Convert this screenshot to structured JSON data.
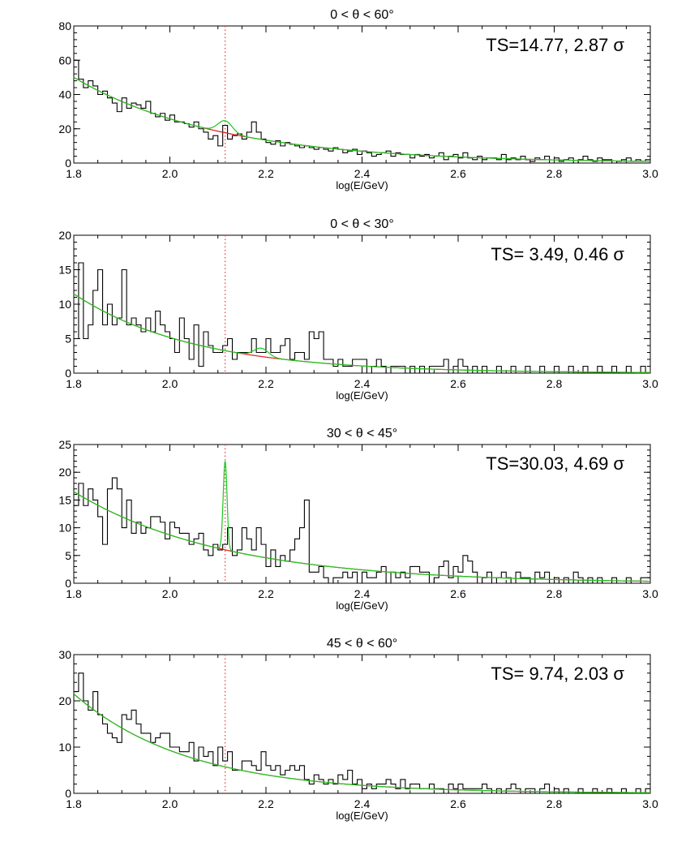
{
  "colors": {
    "histogram": "#000000",
    "background_fit": "#e8161b",
    "line_fit": "#18c81d",
    "line_position_marker": "#ee4444"
  },
  "chart_data": [
    {
      "type": "line",
      "title": "0 < θ < 60°",
      "xlabel": "log(E/GeV)",
      "ylabel": "",
      "xlim": [
        1.8,
        3.0
      ],
      "ylim": [
        0,
        80
      ],
      "xticks": [
        "1.8",
        "2.0",
        "2.2",
        "2.4",
        "2.6",
        "2.8",
        "3.0"
      ],
      "yticks": [
        "0",
        "20",
        "40",
        "60",
        "80"
      ],
      "annotation": "TS=14.77, 2.87 σ",
      "line_marker_x": 2.115,
      "background_fit": {
        "amplitude": 50,
        "slope": 3.3
      },
      "line_fit": {
        "center": 2.115,
        "width": 0.015,
        "height": 7
      },
      "histogram": {
        "x_start": 1.8,
        "bin_width": 0.01,
        "counts": [
          60,
          49,
          44,
          48,
          45,
          40,
          42,
          38,
          35,
          30,
          38,
          32,
          35,
          34,
          32,
          36,
          29,
          27,
          29,
          25,
          28,
          24,
          24,
          23,
          21,
          24,
          20,
          18,
          14,
          16,
          10,
          22,
          14,
          16,
          17,
          14,
          18,
          24,
          18,
          14,
          12,
          11,
          13,
          10,
          12,
          11,
          10,
          9,
          10,
          9,
          8,
          9,
          8,
          7,
          9,
          8,
          6,
          7,
          8,
          5,
          7,
          6,
          4,
          5,
          6,
          7,
          4,
          6,
          5,
          5,
          3,
          5,
          4,
          5,
          3,
          4,
          6,
          2,
          4,
          5,
          3,
          6,
          3,
          2,
          4,
          2,
          3,
          3,
          2,
          5,
          2,
          3,
          2,
          4,
          2,
          1,
          3,
          2,
          4,
          0,
          3,
          1,
          2,
          3,
          0,
          2,
          4,
          2,
          1,
          3,
          2,
          2,
          0,
          1,
          2,
          3,
          1,
          2,
          1,
          2
        ]
      }
    },
    {
      "type": "line",
      "title": "0 < θ < 30°",
      "xlabel": "log(E/GeV)",
      "ylabel": "",
      "xlim": [
        1.8,
        3.0
      ],
      "ylim": [
        0,
        20
      ],
      "xticks": [
        "1.8",
        "2.0",
        "2.2",
        "2.4",
        "2.6",
        "2.8",
        "3.0"
      ],
      "yticks": [
        "0",
        "5",
        "10",
        "15",
        "20"
      ],
      "annotation": "TS= 3.49, 0.46 σ",
      "line_marker_x": 2.115,
      "background_fit": {
        "amplitude": 11.5,
        "slope": 4.0
      },
      "line_fit": {
        "center": 2.19,
        "width": 0.015,
        "height": 1.2
      },
      "histogram": {
        "x_start": 1.8,
        "bin_width": 0.01,
        "counts": [
          5,
          16,
          5,
          7,
          12,
          15,
          7,
          10,
          7,
          8,
          15,
          7,
          8,
          7,
          6,
          8,
          6,
          9,
          7,
          6,
          5,
          3,
          8,
          5,
          2,
          7,
          1,
          6,
          4,
          3,
          3,
          4,
          5,
          2,
          3,
          3,
          3,
          5,
          3,
          3,
          5,
          3,
          3,
          4,
          5,
          2,
          3,
          3,
          2,
          6,
          5,
          6,
          2,
          2,
          1,
          2,
          1,
          1,
          2,
          2,
          2,
          0,
          1,
          2,
          1,
          0,
          1,
          1,
          1,
          0,
          1,
          0,
          1,
          0,
          1,
          1,
          1,
          2,
          0,
          1,
          2,
          1,
          0,
          1,
          0,
          1,
          0,
          0,
          1,
          0,
          0,
          1,
          0,
          0,
          1,
          0,
          0,
          1,
          0,
          0,
          1,
          0,
          0,
          1,
          0,
          0,
          1,
          0,
          0,
          1,
          0,
          0,
          1,
          0,
          0,
          1,
          0,
          0,
          1,
          0
        ]
      }
    },
    {
      "type": "line",
      "title": "30 < θ < 45°",
      "xlabel": "log(E/GeV)",
      "ylabel": "",
      "xlim": [
        1.8,
        3.0
      ],
      "ylim": [
        0,
        25
      ],
      "xticks": [
        "1.8",
        "2.0",
        "2.2",
        "2.4",
        "2.6",
        "2.8",
        "3.0"
      ],
      "yticks": [
        "0",
        "5",
        "10",
        "15",
        "20",
        "25"
      ],
      "annotation": "TS=30.03, 4.69 σ",
      "line_marker_x": 2.115,
      "background_fit": {
        "amplitude": 16.5,
        "slope": 3.2
      },
      "line_fit": {
        "center": 2.115,
        "width": 0.004,
        "height": 16
      },
      "histogram": {
        "x_start": 1.8,
        "bin_width": 0.01,
        "counts": [
          14,
          18,
          14,
          17,
          15,
          12,
          7,
          17,
          19,
          17,
          10,
          15,
          9,
          11,
          9,
          10,
          12,
          12,
          11,
          8,
          11,
          10,
          9,
          9,
          7,
          8,
          9,
          6,
          5,
          7,
          6,
          7,
          10,
          5,
          6,
          10,
          8,
          6,
          10,
          7,
          3,
          6,
          3,
          5,
          4,
          6,
          8,
          10,
          15,
          2,
          2,
          3,
          1,
          0,
          1,
          1,
          2,
          1,
          2,
          0,
          2,
          1,
          1,
          2,
          3,
          0,
          2,
          1,
          2,
          1,
          3,
          3,
          2,
          2,
          0,
          1,
          3,
          4,
          1,
          3,
          2,
          5,
          4,
          2,
          0,
          1,
          2,
          0,
          1,
          2,
          1,
          0,
          2,
          1,
          1,
          0,
          2,
          1,
          2,
          0,
          1,
          0,
          1,
          0,
          2,
          1,
          0,
          1,
          0,
          1,
          0,
          0,
          1,
          0,
          0,
          1,
          0,
          0,
          1,
          1
        ]
      }
    },
    {
      "type": "line",
      "title": "45 < θ < 60°",
      "xlabel": "log(E/GeV)",
      "ylabel": "",
      "xlim": [
        1.8,
        3.0
      ],
      "ylim": [
        0,
        30
      ],
      "xticks": [
        "1.8",
        "2.0",
        "2.2",
        "2.4",
        "2.6",
        "2.8",
        "3.0"
      ],
      "yticks": [
        "0",
        "10",
        "20",
        "30"
      ],
      "annotation": "TS= 9.74, 2.03 σ",
      "line_marker_x": 2.115,
      "background_fit": {
        "amplitude": 21.5,
        "slope": 4.2
      },
      "line_fit": {
        "center": 2.115,
        "width": 0.015,
        "height": 0
      },
      "histogram": {
        "x_start": 1.8,
        "bin_width": 0.01,
        "counts": [
          22,
          26,
          20,
          18,
          22,
          17,
          15,
          13,
          12,
          11,
          17,
          16,
          18,
          15,
          13,
          13,
          11,
          12,
          13,
          13,
          10,
          10,
          9,
          9,
          11,
          7,
          10,
          8,
          9,
          6,
          10,
          7,
          9,
          5,
          5,
          7,
          7,
          6,
          5,
          9,
          6,
          5,
          6,
          4,
          5,
          6,
          5,
          6,
          3,
          2,
          4,
          3,
          2,
          3,
          2,
          4,
          3,
          5,
          2,
          3,
          1,
          2,
          1,
          2,
          2,
          3,
          2,
          1,
          3,
          1,
          2,
          2,
          1,
          1,
          2,
          1,
          1,
          0,
          2,
          1,
          2,
          1,
          1,
          1,
          1,
          2,
          1,
          0,
          1,
          0,
          1,
          2,
          1,
          0,
          1,
          1,
          0,
          1,
          2,
          0,
          1,
          0,
          1,
          0,
          0,
          1,
          0,
          0,
          1,
          0,
          0,
          1,
          0,
          0,
          1,
          0,
          0,
          1,
          0,
          1
        ]
      }
    }
  ]
}
